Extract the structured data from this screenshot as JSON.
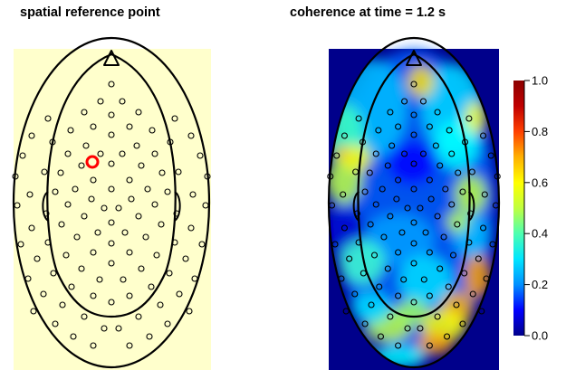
{
  "panels": {
    "left": {
      "title": "spatial reference point"
    },
    "right": {
      "title": "coherence at time = 1.2 s"
    }
  },
  "colorbar": {
    "ticks": [
      "0.0",
      "0.2",
      "0.4",
      "0.6",
      "0.8",
      "1.0"
    ],
    "range": [
      0,
      1
    ],
    "colormap": [
      "#00008b",
      "#0000ff",
      "#0090ff",
      "#00e5ff",
      "#4dffb0",
      "#c0ff40",
      "#ffff00",
      "#ffb000",
      "#ff4000",
      "#c00000",
      "#8b0000"
    ]
  },
  "colors": {
    "left_background": "#ffffcc",
    "right_background": "#00008b",
    "reference_marker": "#ff0000",
    "outline": "#000000"
  }
}
